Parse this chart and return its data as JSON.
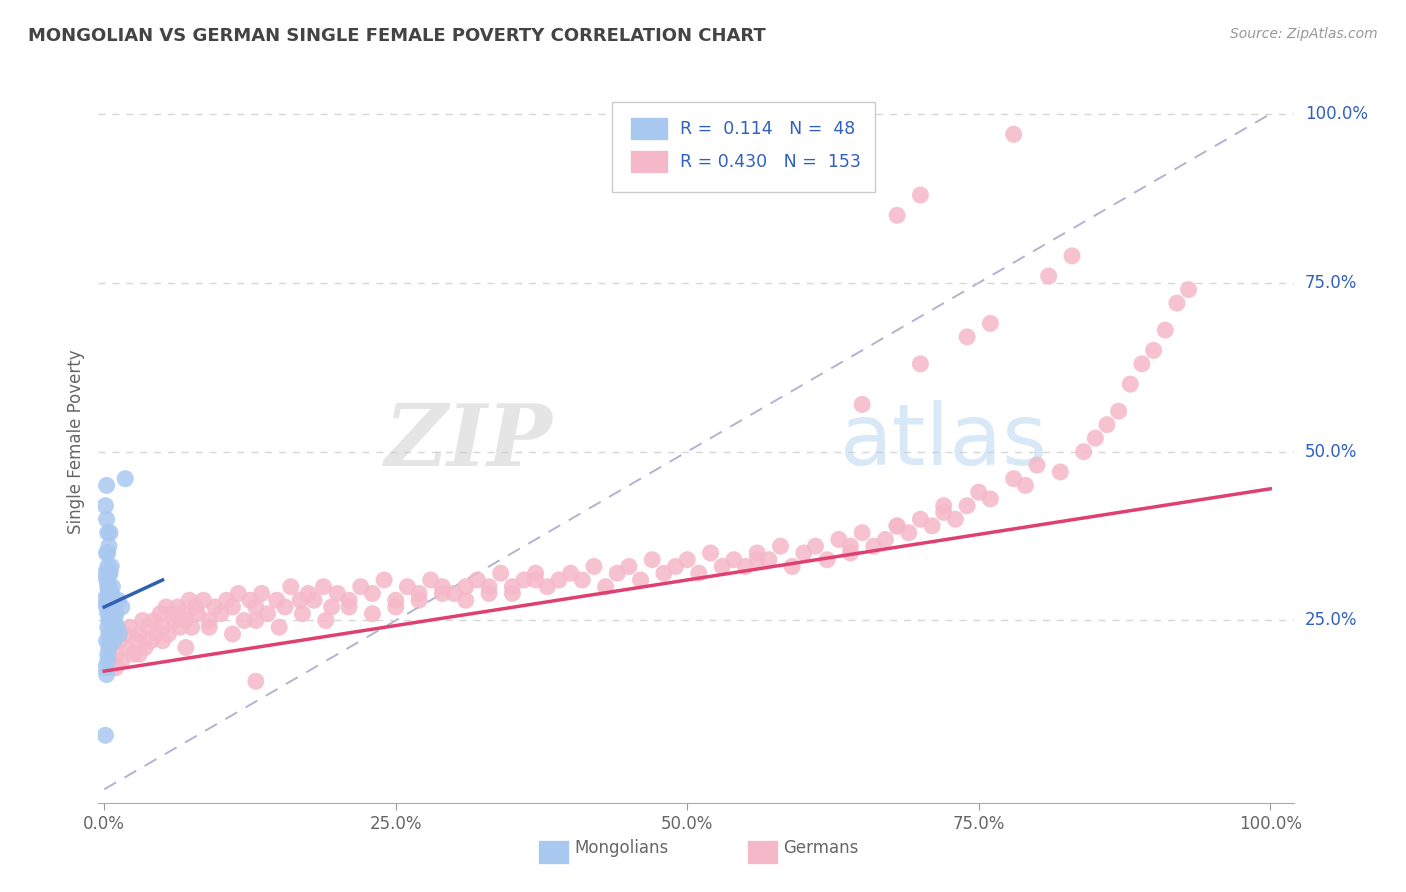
{
  "title": "MONGOLIAN VS GERMAN SINGLE FEMALE POVERTY CORRELATION CHART",
  "source": "Source: ZipAtlas.com",
  "ylabel": "Single Female Poverty",
  "watermark_zip": "ZIP",
  "watermark_atlas": "atlas",
  "legend_blue_R": "0.114",
  "legend_blue_N": "48",
  "legend_pink_R": "0.430",
  "legend_pink_N": "153",
  "blue_color": "#a8c8f0",
  "pink_color": "#f5b8c8",
  "blue_line_color": "#3060b0",
  "pink_line_color": "#e04070",
  "diag_color": "#aaaacc",
  "legend_text_color": "#3060c0",
  "title_color": "#444444",
  "axis_label_color": "#666666",
  "right_tick_color": "#3060c0",
  "background_color": "#ffffff",
  "grid_color": "#cccccc",
  "mongolian_x": [
    0.0,
    0.001,
    0.001,
    0.001,
    0.001,
    0.002,
    0.002,
    0.002,
    0.002,
    0.002,
    0.002,
    0.002,
    0.003,
    0.003,
    0.003,
    0.003,
    0.003,
    0.003,
    0.003,
    0.003,
    0.003,
    0.003,
    0.004,
    0.004,
    0.004,
    0.004,
    0.004,
    0.004,
    0.004,
    0.005,
    0.005,
    0.005,
    0.005,
    0.005,
    0.006,
    0.006,
    0.006,
    0.007,
    0.007,
    0.008,
    0.008,
    0.009,
    0.01,
    0.011,
    0.012,
    0.013,
    0.015,
    0.018
  ],
  "mongolian_y": [
    0.28,
    0.32,
    0.18,
    0.42,
    0.08,
    0.35,
    0.27,
    0.4,
    0.22,
    0.31,
    0.17,
    0.45,
    0.28,
    0.33,
    0.24,
    0.38,
    0.2,
    0.3,
    0.26,
    0.35,
    0.19,
    0.29,
    0.27,
    0.32,
    0.23,
    0.36,
    0.21,
    0.3,
    0.25,
    0.28,
    0.32,
    0.22,
    0.38,
    0.25,
    0.29,
    0.33,
    0.24,
    0.3,
    0.26,
    0.28,
    0.22,
    0.25,
    0.26,
    0.24,
    0.28,
    0.23,
    0.27,
    0.46
  ],
  "german_x": [
    0.01,
    0.013,
    0.015,
    0.018,
    0.02,
    0.022,
    0.025,
    0.028,
    0.03,
    0.033,
    0.035,
    0.038,
    0.04,
    0.043,
    0.045,
    0.048,
    0.05,
    0.053,
    0.055,
    0.058,
    0.06,
    0.063,
    0.065,
    0.068,
    0.07,
    0.073,
    0.075,
    0.078,
    0.08,
    0.085,
    0.09,
    0.095,
    0.1,
    0.105,
    0.11,
    0.115,
    0.12,
    0.125,
    0.13,
    0.135,
    0.14,
    0.148,
    0.155,
    0.16,
    0.168,
    0.175,
    0.18,
    0.188,
    0.195,
    0.2,
    0.21,
    0.22,
    0.23,
    0.24,
    0.25,
    0.26,
    0.27,
    0.28,
    0.29,
    0.3,
    0.31,
    0.32,
    0.33,
    0.34,
    0.35,
    0.36,
    0.37,
    0.38,
    0.39,
    0.4,
    0.41,
    0.42,
    0.43,
    0.44,
    0.45,
    0.46,
    0.47,
    0.48,
    0.49,
    0.5,
    0.51,
    0.52,
    0.53,
    0.54,
    0.55,
    0.56,
    0.57,
    0.58,
    0.59,
    0.6,
    0.61,
    0.62,
    0.63,
    0.64,
    0.65,
    0.66,
    0.67,
    0.68,
    0.69,
    0.7,
    0.71,
    0.72,
    0.73,
    0.74,
    0.75,
    0.76,
    0.78,
    0.79,
    0.8,
    0.82,
    0.84,
    0.85,
    0.86,
    0.87,
    0.88,
    0.89,
    0.9,
    0.91,
    0.92,
    0.93,
    0.01,
    0.03,
    0.05,
    0.07,
    0.09,
    0.11,
    0.13,
    0.15,
    0.17,
    0.19,
    0.21,
    0.23,
    0.25,
    0.27,
    0.29,
    0.31,
    0.33,
    0.35,
    0.37,
    0.56,
    0.64,
    0.68,
    0.72,
    0.13,
    0.65,
    0.7,
    0.74,
    0.76,
    0.81,
    0.83,
    0.68,
    0.7,
    0.78
  ],
  "german_y": [
    0.2,
    0.22,
    0.19,
    0.23,
    0.21,
    0.24,
    0.2,
    0.22,
    0.23,
    0.25,
    0.21,
    0.24,
    0.22,
    0.25,
    0.23,
    0.26,
    0.24,
    0.27,
    0.23,
    0.26,
    0.25,
    0.27,
    0.24,
    0.26,
    0.25,
    0.28,
    0.24,
    0.27,
    0.26,
    0.28,
    0.25,
    0.27,
    0.26,
    0.28,
    0.27,
    0.29,
    0.25,
    0.28,
    0.27,
    0.29,
    0.26,
    0.28,
    0.27,
    0.3,
    0.28,
    0.29,
    0.28,
    0.3,
    0.27,
    0.29,
    0.28,
    0.3,
    0.29,
    0.31,
    0.28,
    0.3,
    0.29,
    0.31,
    0.3,
    0.29,
    0.3,
    0.31,
    0.29,
    0.32,
    0.3,
    0.31,
    0.32,
    0.3,
    0.31,
    0.32,
    0.31,
    0.33,
    0.3,
    0.32,
    0.33,
    0.31,
    0.34,
    0.32,
    0.33,
    0.34,
    0.32,
    0.35,
    0.33,
    0.34,
    0.33,
    0.35,
    0.34,
    0.36,
    0.33,
    0.35,
    0.36,
    0.34,
    0.37,
    0.35,
    0.38,
    0.36,
    0.37,
    0.39,
    0.38,
    0.4,
    0.39,
    0.41,
    0.4,
    0.42,
    0.44,
    0.43,
    0.46,
    0.45,
    0.48,
    0.47,
    0.5,
    0.52,
    0.54,
    0.56,
    0.6,
    0.63,
    0.65,
    0.68,
    0.72,
    0.74,
    0.18,
    0.2,
    0.22,
    0.21,
    0.24,
    0.23,
    0.25,
    0.24,
    0.26,
    0.25,
    0.27,
    0.26,
    0.27,
    0.28,
    0.29,
    0.28,
    0.3,
    0.29,
    0.31,
    0.34,
    0.36,
    0.39,
    0.42,
    0.16,
    0.57,
    0.63,
    0.67,
    0.69,
    0.76,
    0.79,
    0.85,
    0.88,
    0.97
  ],
  "xlim": [
    0.0,
    1.0
  ],
  "ylim": [
    -0.02,
    1.05
  ],
  "xticks": [
    0.0,
    0.25,
    0.5,
    0.75,
    1.0
  ],
  "ytick_vals": [
    0.25,
    0.5,
    0.75,
    1.0
  ],
  "ytick_labels": [
    "25.0%",
    "50.0%",
    "75.0%",
    "100.0%"
  ],
  "xtick_labels": [
    "0.0%",
    "25.0%",
    "50.0%",
    "75.0%",
    "100.0%"
  ]
}
